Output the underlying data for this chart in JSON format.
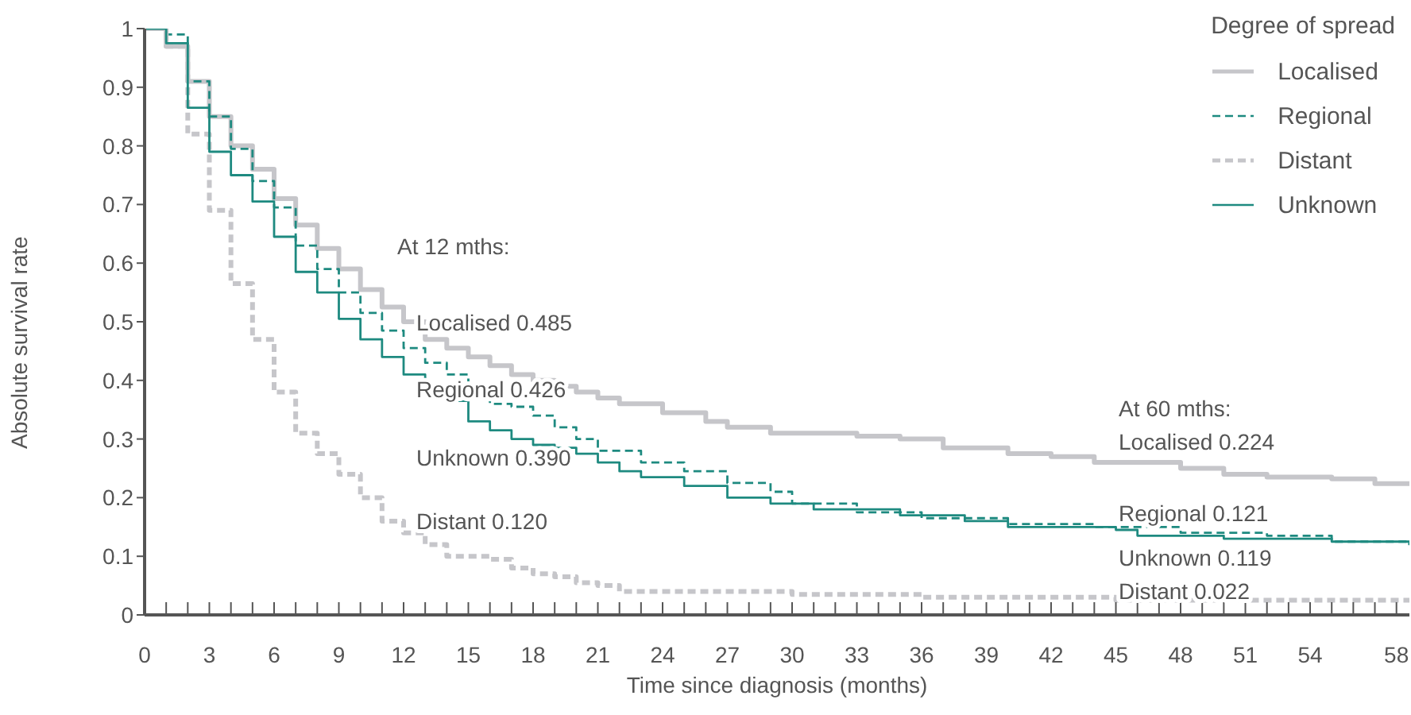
{
  "chart_data": {
    "type": "step",
    "xlabel": "Time since diagnosis (months)",
    "ylabel": "Absolute survival rate",
    "legend_title": "Degree of spread",
    "legend": "top right",
    "xlim": [
      0,
      58.6
    ],
    "ylim": [
      0,
      1
    ],
    "xticks": [
      0,
      {
        "value": 1,
        "label": null
      },
      {
        "value": 2,
        "label": null
      },
      3,
      {
        "value": 4,
        "label": null
      },
      {
        "value": 5,
        "label": null
      },
      6,
      {
        "value": 7,
        "label": null
      },
      {
        "value": 8,
        "label": null
      },
      9,
      {
        "value": 10,
        "label": null
      },
      {
        "value": 11,
        "label": null
      },
      12,
      {
        "value": 13,
        "label": null
      },
      {
        "value": 14,
        "label": null
      },
      15,
      {
        "value": 16,
        "label": null
      },
      {
        "value": 17,
        "label": null
      },
      18,
      {
        "value": 19,
        "label": null
      },
      {
        "value": 20,
        "label": null
      },
      21,
      {
        "value": 22,
        "label": null
      },
      {
        "value": 23,
        "label": null
      },
      24,
      {
        "value": 25,
        "label": null
      },
      {
        "value": 26,
        "label": null
      },
      27,
      {
        "value": 28,
        "label": null
      },
      {
        "value": 29,
        "label": null
      },
      30,
      {
        "value": 31,
        "label": null
      },
      {
        "value": 32,
        "label": null
      },
      33,
      {
        "value": 34,
        "label": null
      },
      {
        "value": 35,
        "label": null
      },
      36,
      {
        "value": 37,
        "label": null
      },
      {
        "value": 38,
        "label": null
      },
      39,
      {
        "value": 40,
        "label": null
      },
      {
        "value": 41,
        "label": null
      },
      42,
      {
        "value": 43,
        "label": null
      },
      {
        "value": 44,
        "label": null
      },
      45,
      {
        "value": 46,
        "label": null
      },
      {
        "value": 47,
        "label": null
      },
      48,
      {
        "value": 49,
        "label": null
      },
      {
        "value": 50,
        "label": null
      },
      51,
      {
        "value": 52,
        "label": null
      },
      {
        "value": 53,
        "label": null
      },
      54,
      {
        "value": 55,
        "label": null
      },
      {
        "value": 56,
        "label": null
      },
      {
        "value": 57,
        "label": null
      },
      58
    ],
    "yticks": [
      0,
      0.1,
      0.2,
      0.3,
      0.4,
      0.5,
      0.6,
      0.7,
      0.8,
      0.9,
      1
    ],
    "series": [
      {
        "name": "Localised",
        "color": "#c6c6ca",
        "line_style": "solid",
        "x": [
          0,
          1,
          2,
          3,
          4,
          5,
          6,
          7,
          8,
          9,
          10,
          11,
          12,
          13,
          14,
          15,
          16,
          17,
          18,
          19,
          20,
          21,
          22,
          24,
          26,
          27,
          29,
          32,
          33,
          35,
          37,
          40,
          42,
          44,
          46,
          48,
          50,
          52,
          55,
          57,
          58.6
        ],
        "values": [
          1,
          0.97,
          0.91,
          0.85,
          0.8,
          0.76,
          0.71,
          0.665,
          0.625,
          0.59,
          0.555,
          0.525,
          0.5,
          0.47,
          0.455,
          0.44,
          0.425,
          0.41,
          0.4,
          0.39,
          0.38,
          0.37,
          0.36,
          0.345,
          0.33,
          0.32,
          0.31,
          0.31,
          0.305,
          0.3,
          0.285,
          0.275,
          0.27,
          0.26,
          0.26,
          0.25,
          0.24,
          0.235,
          0.232,
          0.224,
          0.22
        ]
      },
      {
        "name": "Regional",
        "color": "#1e8a80",
        "line_style": "dashed",
        "x": [
          0,
          1,
          2,
          3,
          4,
          5,
          6,
          7,
          8,
          9,
          10,
          11,
          12,
          13,
          14,
          15,
          16,
          17,
          18,
          19,
          20,
          21,
          23,
          25,
          27,
          29,
          30,
          33,
          36,
          40,
          44,
          48,
          52,
          55,
          58.6
        ],
        "values": [
          1,
          0.99,
          0.91,
          0.85,
          0.795,
          0.74,
          0.695,
          0.63,
          0.59,
          0.55,
          0.515,
          0.485,
          0.455,
          0.43,
          0.41,
          0.38,
          0.36,
          0.355,
          0.34,
          0.32,
          0.3,
          0.28,
          0.26,
          0.245,
          0.225,
          0.21,
          0.19,
          0.175,
          0.165,
          0.155,
          0.15,
          0.14,
          0.135,
          0.125,
          0.12
        ]
      },
      {
        "name": "Distant",
        "color": "#c6c6ca",
        "line_style": "dashed",
        "x": [
          0,
          1,
          2,
          3,
          4,
          5,
          6,
          7,
          8,
          9,
          10,
          11,
          12,
          13,
          14,
          16,
          17,
          18,
          19,
          20,
          21,
          22,
          30,
          36,
          45,
          58.6
        ],
        "values": [
          1,
          0.97,
          0.82,
          0.69,
          0.565,
          0.47,
          0.38,
          0.31,
          0.275,
          0.24,
          0.2,
          0.16,
          0.14,
          0.12,
          0.1,
          0.095,
          0.08,
          0.07,
          0.065,
          0.055,
          0.05,
          0.04,
          0.035,
          0.03,
          0.025,
          0.02
        ]
      },
      {
        "name": "Unknown",
        "color": "#1e8a80",
        "line_style": "solid",
        "x": [
          0,
          1,
          2,
          3,
          4,
          5,
          6,
          7,
          8,
          9,
          10,
          11,
          12,
          13,
          14,
          15,
          16,
          17,
          18,
          19,
          20,
          21,
          22,
          23,
          25,
          27,
          29,
          31,
          35,
          38,
          40,
          45,
          46,
          50,
          55,
          58.6
        ],
        "values": [
          1,
          0.975,
          0.865,
          0.79,
          0.75,
          0.705,
          0.645,
          0.585,
          0.55,
          0.505,
          0.47,
          0.44,
          0.41,
          0.39,
          0.365,
          0.33,
          0.315,
          0.3,
          0.29,
          0.285,
          0.275,
          0.26,
          0.245,
          0.235,
          0.22,
          0.2,
          0.19,
          0.18,
          0.17,
          0.16,
          0.15,
          0.145,
          0.135,
          0.13,
          0.125,
          0.119
        ]
      }
    ],
    "annotations": [
      "At 12 mths:",
      "Localised 0.485",
      "Regional 0.426",
      "Unknown 0.390",
      "Distant 0.120",
      "At 60 mths:",
      "Localised 0.224",
      "Regional 0.121",
      "Unknown 0.119",
      "Distant 0.022"
    ]
  }
}
